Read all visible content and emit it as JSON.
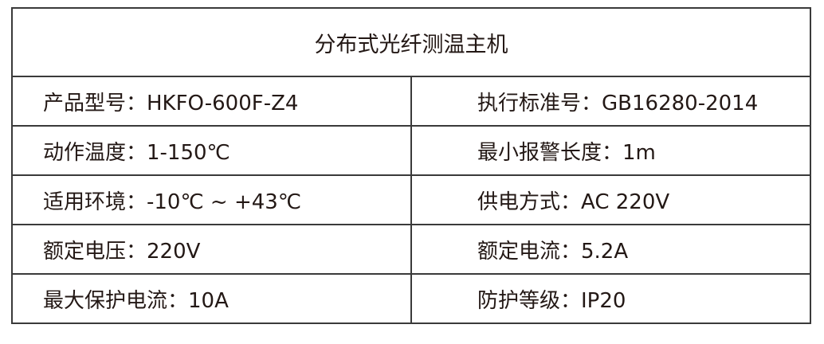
{
  "title": "分布式光纤测温主机",
  "rows": [
    {
      "left": "产品型号：HKFO-600F-Z4",
      "right": "执行标准号：GB16280-2014"
    },
    {
      "left": "动作温度：1-150℃",
      "right": "最小报警长度：1m"
    },
    {
      "left": "适用环境：-10℃ ~ +43℃",
      "right": "供电方式：AC 220V"
    },
    {
      "left": "额定电压：220V",
      "right": "额定电流：5.2A"
    },
    {
      "left": "最大保护电流：10A",
      "right": "防护等级：IP20"
    }
  ]
}
